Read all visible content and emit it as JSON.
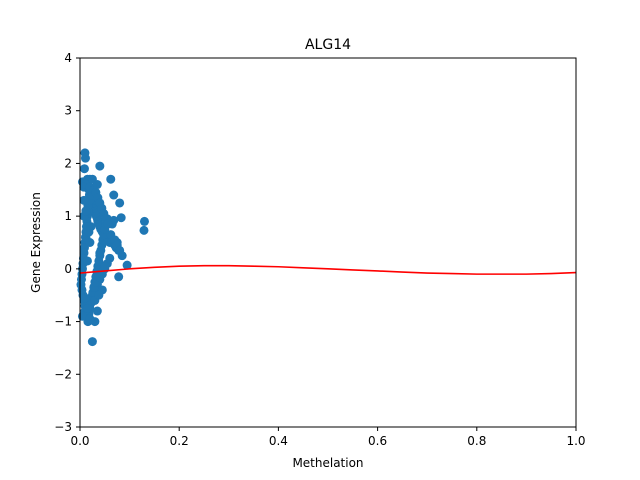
{
  "chart_data": {
    "type": "scatter",
    "title": "ALG14",
    "xlabel": "Methelation",
    "ylabel": "Gene Expression",
    "xlim": [
      0.0,
      1.0
    ],
    "ylim": [
      -3,
      4
    ],
    "xticks": [
      "0.0",
      "0.2",
      "0.4",
      "0.6",
      "0.8",
      "1.0"
    ],
    "yticks": [
      "4",
      "3",
      "2",
      "1",
      "0",
      "−1",
      "−2",
      "−3"
    ],
    "grid": false,
    "legend": false,
    "colors": {
      "points": "#1f77b4",
      "fit": "#ff0000"
    },
    "series": [
      {
        "kind": "points",
        "x": [
          0.01,
          0.011,
          0.009,
          0.015,
          0.02,
          0.005,
          0.012,
          0.008,
          0.018,
          0.022,
          0.04,
          0.062,
          0.068,
          0.08,
          0.083,
          0.13,
          0.129,
          0.095,
          0.078,
          0.073,
          0.07,
          0.06,
          0.055,
          0.05,
          0.048,
          0.045,
          0.042,
          0.04,
          0.038,
          0.036,
          0.035,
          0.033,
          0.031,
          0.03,
          0.028,
          0.027,
          0.026,
          0.025,
          0.024,
          0.023,
          0.022,
          0.021,
          0.02,
          0.019,
          0.018,
          0.017,
          0.016,
          0.015,
          0.014,
          0.013,
          0.012,
          0.011,
          0.01,
          0.009,
          0.008,
          0.007,
          0.006,
          0.005,
          0.004,
          0.003,
          0.002,
          0.004,
          0.006,
          0.008,
          0.01,
          0.012,
          0.014,
          0.016,
          0.018,
          0.02,
          0.022,
          0.024,
          0.026,
          0.028,
          0.03,
          0.032,
          0.034,
          0.036,
          0.038,
          0.04,
          0.042,
          0.044,
          0.046,
          0.048,
          0.05,
          0.052,
          0.055,
          0.058,
          0.06,
          0.065,
          0.068,
          0.072,
          0.075,
          0.078,
          0.06,
          0.055,
          0.05,
          0.045,
          0.04,
          0.035,
          0.03,
          0.025,
          0.02,
          0.015,
          0.01,
          0.005,
          0.008,
          0.012,
          0.016,
          0.02,
          0.024,
          0.028,
          0.032,
          0.036,
          0.04,
          0.044,
          0.048,
          0.052,
          0.056,
          0.062,
          0.07,
          0.075,
          0.08,
          0.085,
          0.03,
          0.025,
          0.02,
          0.015,
          0.01,
          0.012,
          0.018,
          0.022,
          0.028,
          0.032,
          0.038,
          0.045,
          0.05,
          0.035,
          0.025,
          0.015,
          0.04,
          0.02,
          0.016,
          0.012,
          0.008,
          0.03,
          0.035,
          0.045,
          0.038
        ],
        "y": [
          2.2,
          2.1,
          1.9,
          1.7,
          1.7,
          1.65,
          1.6,
          1.55,
          1.5,
          1.45,
          1.95,
          1.7,
          1.4,
          1.25,
          0.97,
          0.9,
          0.73,
          0.07,
          -0.15,
          0.4,
          0.45,
          0.5,
          0.55,
          0.6,
          0.65,
          0.7,
          0.75,
          0.8,
          0.85,
          0.9,
          0.95,
          1.0,
          1.05,
          1.1,
          1.15,
          1.2,
          1.25,
          1.3,
          1.35,
          1.4,
          1.45,
          1.5,
          1.55,
          1.4,
          1.3,
          1.2,
          1.1,
          1.0,
          0.9,
          0.8,
          0.7,
          0.6,
          0.5,
          0.4,
          0.3,
          0.2,
          0.1,
          0.0,
          -0.1,
          -0.2,
          -0.3,
          -0.4,
          -0.5,
          -0.6,
          -0.7,
          -0.8,
          -0.9,
          -1.0,
          -0.85,
          -0.75,
          -0.65,
          -0.55,
          -0.45,
          -0.35,
          -0.25,
          -0.15,
          -0.05,
          0.05,
          0.15,
          0.25,
          0.35,
          0.45,
          0.55,
          0.65,
          0.75,
          0.85,
          0.95,
          0.9,
          0.88,
          0.85,
          0.92,
          0.45,
          0.5,
          0.35,
          0.2,
          0.1,
          0.0,
          -0.1,
          -0.2,
          -0.3,
          -0.4,
          -0.5,
          -0.6,
          -0.7,
          -0.8,
          -0.9,
          1.0,
          1.1,
          1.2,
          1.3,
          1.4,
          1.5,
          1.45,
          1.35,
          1.25,
          1.15,
          1.05,
          0.95,
          0.85,
          0.65,
          0.55,
          0.45,
          0.35,
          0.25,
          -1.0,
          -1.38,
          -0.95,
          -0.75,
          -0.55,
          0.6,
          0.7,
          0.8,
          -0.35,
          -0.25,
          -0.15,
          -0.05,
          0.05,
          1.6,
          1.7,
          0.15,
          0.3,
          0.5,
          0.8,
          1.1,
          1.3,
          -0.6,
          -0.8,
          -0.4,
          -0.5
        ]
      },
      {
        "kind": "fit-line",
        "x": [
          0.0,
          0.05,
          0.1,
          0.15,
          0.2,
          0.25,
          0.3,
          0.35,
          0.4,
          0.45,
          0.5,
          0.55,
          0.6,
          0.65,
          0.7,
          0.75,
          0.8,
          0.85,
          0.9,
          0.95,
          1.0
        ],
        "y": [
          -0.08,
          -0.04,
          0.0,
          0.03,
          0.05,
          0.06,
          0.06,
          0.05,
          0.04,
          0.02,
          0.0,
          -0.02,
          -0.04,
          -0.06,
          -0.08,
          -0.09,
          -0.1,
          -0.1,
          -0.1,
          -0.09,
          -0.07
        ]
      }
    ]
  }
}
